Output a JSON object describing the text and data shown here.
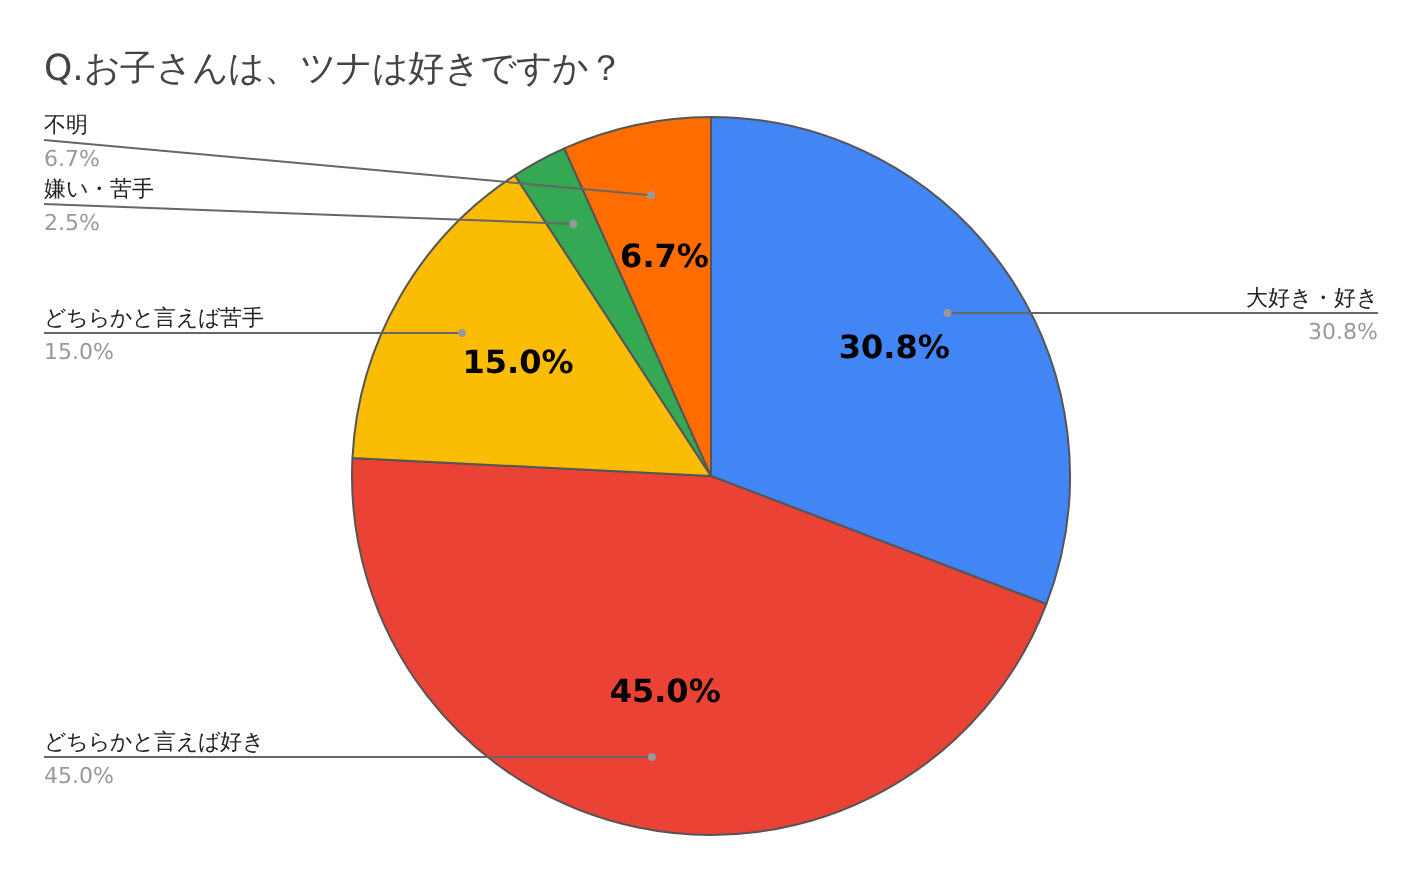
{
  "chart_data": {
    "type": "pie",
    "title": "Q.お子さんは、ツナは好きですか？",
    "categories": [
      "大好き・好き",
      "どちらかと言えば好き",
      "どちらかと言えば苦手",
      "嫌い・苦手",
      "不明"
    ],
    "values": [
      30.8,
      45.0,
      15.0,
      2.5,
      6.7
    ],
    "value_labels": [
      "30.8%",
      "45.0%",
      "15.0%",
      "2.5%",
      "6.7%"
    ],
    "colors": [
      "#4285f4",
      "#ea4335",
      "#fbbc04",
      "#34a853",
      "#ff6d01"
    ],
    "legend": false
  }
}
